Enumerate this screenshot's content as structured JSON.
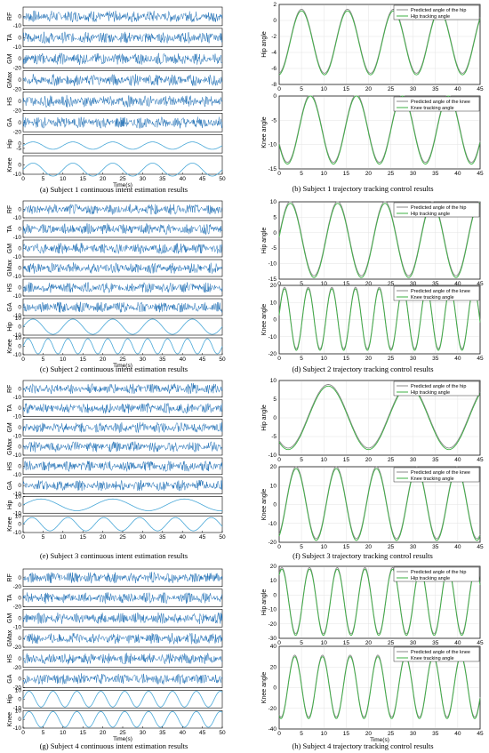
{
  "captions": {
    "a": "(a) Subject 1 continuous intent estimation results",
    "b": "(b) Subject 1 trajectory tracking control results",
    "c": "(c) Subject 2  continuous intent estimation results",
    "d": "(d) Subject 2 trajectory tracking control results",
    "e": "(e) Subject 3  continuous intent estimation results",
    "f": "(f) Subject 3 trajectory tracking control results",
    "g": "(g) Subject 4  continuous intent estimation results",
    "h": "(h) Subject 4 trajectory tracking control results"
  },
  "colors": {
    "emg": "#1f6fb5",
    "angle": "#4aa8d8",
    "predicted": "#8a8a8a",
    "tracking": "#3cb043"
  },
  "chart_data": [
    {
      "panel": "a",
      "type": "line",
      "xlabel": "Time(s)",
      "x_ticks": [
        0,
        5,
        10,
        15,
        20,
        25,
        30,
        35,
        40,
        45,
        50
      ],
      "xlim": [
        0,
        50
      ],
      "channels": [
        {
          "name": "RF",
          "ylim": [
            -10,
            10
          ],
          "yticks": [
            0,
            -10
          ]
        },
        {
          "name": "TA",
          "ylim": [
            -10,
            10
          ],
          "yticks": [
            0,
            -10
          ]
        },
        {
          "name": "GM",
          "ylim": [
            -20,
            20
          ],
          "yticks": [
            0,
            -20
          ]
        },
        {
          "name": "GMax",
          "ylim": [
            -20,
            20
          ],
          "yticks": [
            0,
            -20
          ]
        },
        {
          "name": "HS",
          "ylim": [
            -20,
            20
          ],
          "yticks": [
            0,
            -20
          ]
        },
        {
          "name": "GA",
          "ylim": [
            -20,
            20
          ],
          "yticks": [
            0,
            -20
          ]
        },
        {
          "name": "Hip",
          "ylim": [
            -10,
            10
          ],
          "yticks": [
            0,
            -5
          ],
          "period": 10,
          "amp": 4,
          "offset": -2
        },
        {
          "name": "Knee",
          "ylim": [
            -10,
            10
          ],
          "yticks": [
            0,
            -10
          ],
          "period": 10,
          "amp": 7,
          "offset": -5
        }
      ]
    },
    {
      "panel": "b",
      "type": "line",
      "xlabel": "",
      "x_ticks": [
        0,
        5,
        10,
        15,
        20,
        25,
        30,
        35,
        40,
        45
      ],
      "xlim": [
        0,
        45
      ],
      "subplots": [
        {
          "ylabel": "Hip angle",
          "ylim": [
            -8,
            2
          ],
          "yticks": [
            2,
            0,
            -2,
            -4,
            -6,
            -8
          ],
          "legend": [
            "Predicted angle of the hip",
            "Hip tracking angle"
          ],
          "period": 10.3,
          "amp": 4,
          "offset": -2.8,
          "phase": 5
        },
        {
          "ylabel": "Knee angle",
          "ylim": [
            -15,
            0
          ],
          "yticks": [
            0,
            -5,
            -10,
            -15
          ],
          "legend": [
            "Predicted angle of the knee",
            "Knee tracking angle"
          ],
          "period": 10.3,
          "amp": 7,
          "offset": -7,
          "phase": 7
        }
      ]
    },
    {
      "panel": "c",
      "type": "line",
      "xlabel": "Time(s)",
      "x_ticks": [
        0,
        5,
        10,
        15,
        20,
        25,
        30,
        35,
        40,
        45,
        50
      ],
      "xlim": [
        0,
        50
      ],
      "channels": [
        {
          "name": "RF",
          "ylim": [
            -10,
            10
          ],
          "yticks": [
            0,
            -10
          ]
        },
        {
          "name": "TA",
          "ylim": [
            -10,
            10
          ],
          "yticks": [
            0,
            -10
          ]
        },
        {
          "name": "GM",
          "ylim": [
            -10,
            10
          ],
          "yticks": [
            0,
            -10
          ]
        },
        {
          "name": "GMax",
          "ylim": [
            -10,
            10
          ],
          "yticks": [
            0,
            -10
          ]
        },
        {
          "name": "HS",
          "ylim": [
            -10,
            10
          ],
          "yticks": [
            0,
            -10
          ]
        },
        {
          "name": "GA",
          "ylim": [
            -10,
            10
          ],
          "yticks": [
            0,
            -10
          ]
        },
        {
          "name": "Hip",
          "ylim": [
            -10,
            10
          ],
          "yticks": [
            10,
            0,
            -10
          ],
          "period": 10,
          "amp": 9,
          "offset": 0
        },
        {
          "name": "Knee",
          "ylim": [
            -10,
            10
          ],
          "yticks": [
            10,
            0,
            -10
          ],
          "period": 5,
          "amp": 9,
          "offset": 0
        }
      ]
    },
    {
      "panel": "d",
      "type": "line",
      "xlabel": "",
      "x_ticks": [
        0,
        5,
        10,
        15,
        20,
        25,
        30,
        35,
        40,
        45
      ],
      "xlim": [
        0,
        45
      ],
      "subplots": [
        {
          "ylabel": "Hip angle",
          "ylim": [
            -15,
            10
          ],
          "yticks": [
            10,
            5,
            0,
            -5,
            -10,
            -15
          ],
          "legend": [
            "Predicted angle of the hip",
            "Hip tracking angle"
          ],
          "period": 10.6,
          "amp": 12,
          "offset": -2.5,
          "phase": 2.5
        },
        {
          "ylabel": "Knee angle",
          "ylim": [
            -20,
            20
          ],
          "yticks": [
            20,
            10,
            0,
            -10,
            -20
          ],
          "legend": [
            "Predicted angle of the knee",
            "Knee tracking angle"
          ],
          "period": 5.3,
          "amp": 18,
          "offset": 0,
          "phase": 1.2
        }
      ]
    },
    {
      "panel": "e",
      "type": "line",
      "xlabel": "",
      "x_ticks": [
        0,
        5,
        10,
        15,
        20,
        25,
        30,
        35,
        40,
        45,
        50
      ],
      "xlim": [
        0,
        50
      ],
      "channels": [
        {
          "name": "RF",
          "ylim": [
            -10,
            10
          ],
          "yticks": [
            0,
            -10
          ]
        },
        {
          "name": "TA",
          "ylim": [
            -10,
            10
          ],
          "yticks": [
            0,
            -10
          ]
        },
        {
          "name": "GM",
          "ylim": [
            -10,
            10
          ],
          "yticks": [
            0,
            -10
          ]
        },
        {
          "name": "GMax",
          "ylim": [
            -10,
            10
          ],
          "yticks": [
            0,
            -10
          ]
        },
        {
          "name": "HS",
          "ylim": [
            -10,
            10
          ],
          "yticks": [
            0,
            -10
          ]
        },
        {
          "name": "GA",
          "ylim": [
            -10,
            10
          ],
          "yticks": [
            0,
            -10
          ]
        },
        {
          "name": "Hip",
          "ylim": [
            -10,
            10
          ],
          "yticks": [
            10,
            0,
            -10
          ],
          "period": 18,
          "amp": 7,
          "offset": 0
        },
        {
          "name": "Knee",
          "ylim": [
            -10,
            10
          ],
          "yticks": [
            10,
            0,
            -10
          ],
          "period": 9,
          "amp": 8,
          "offset": 0
        }
      ]
    },
    {
      "panel": "f",
      "type": "line",
      "xlabel": "",
      "x_ticks": [
        0,
        5,
        10,
        15,
        20,
        25,
        30,
        35,
        40,
        45
      ],
      "xlim": [
        0,
        45
      ],
      "subplots": [
        {
          "ylabel": "Hip angle",
          "ylim": [
            -10,
            10
          ],
          "yticks": [
            10,
            5,
            0,
            -5,
            -10
          ],
          "legend": [
            "Predicted angle of the hip",
            "Hip tracking angle"
          ],
          "period": 18,
          "amp": 8.5,
          "offset": 0,
          "phase": 11
        },
        {
          "ylabel": "Knee angle",
          "ylim": [
            -20,
            20
          ],
          "yticks": [
            20,
            10,
            0,
            -10,
            -20
          ],
          "legend": [
            "Predicted angle of the knee",
            "Knee tracking angle"
          ],
          "period": 9,
          "amp": 19,
          "offset": 0,
          "phase": 3.8
        }
      ]
    },
    {
      "panel": "g",
      "type": "line",
      "xlabel": "Time(s)",
      "x_ticks": [
        0,
        5,
        10,
        15,
        20,
        25,
        30,
        35,
        40,
        45,
        50
      ],
      "xlim": [
        0,
        50
      ],
      "channels": [
        {
          "name": "RF",
          "ylim": [
            -20,
            20
          ],
          "yticks": [
            0,
            -20
          ]
        },
        {
          "name": "TA",
          "ylim": [
            -20,
            20
          ],
          "yticks": [
            0,
            -20
          ]
        },
        {
          "name": "GM",
          "ylim": [
            -10,
            10
          ],
          "yticks": [
            0,
            -10
          ]
        },
        {
          "name": "GMax",
          "ylim": [
            -20,
            20
          ],
          "yticks": [
            0,
            -20
          ]
        },
        {
          "name": "HS",
          "ylim": [
            -20,
            20
          ],
          "yticks": [
            0,
            -20
          ]
        },
        {
          "name": "GA",
          "ylim": [
            -20,
            20
          ],
          "yticks": [
            0,
            -20
          ]
        },
        {
          "name": "Hip",
          "ylim": [
            -10,
            10
          ],
          "yticks": [
            10,
            0,
            -10
          ],
          "period": 6,
          "amp": 9,
          "offset": 0
        },
        {
          "name": "Knee",
          "ylim": [
            -10,
            10
          ],
          "yticks": [
            10,
            0,
            -10
          ],
          "period": 6,
          "amp": 9,
          "offset": 0
        }
      ]
    },
    {
      "panel": "h",
      "type": "line",
      "xlabel": "Time(s)",
      "x_ticks": [
        0,
        5,
        10,
        15,
        20,
        25,
        30,
        35,
        40,
        45
      ],
      "xlim": [
        0,
        45
      ],
      "subplots": [
        {
          "ylabel": "Hip angle",
          "ylim": [
            -30,
            20
          ],
          "yticks": [
            20,
            10,
            0,
            -10,
            -20,
            -30
          ],
          "legend": [
            "Predicted angle of the hip",
            "Hip tracking angle"
          ],
          "period": 6.2,
          "amp": 23,
          "offset": -5,
          "phase": 0.6
        },
        {
          "ylabel": "Knee angle",
          "ylim": [
            -40,
            40
          ],
          "yticks": [
            40,
            20,
            0,
            -20,
            -40
          ],
          "legend": [
            "Predicted angle of the knee",
            "Knee tracking angle"
          ],
          "period": 6.2,
          "amp": 30,
          "offset": 0,
          "phase": 3.5
        }
      ]
    }
  ]
}
